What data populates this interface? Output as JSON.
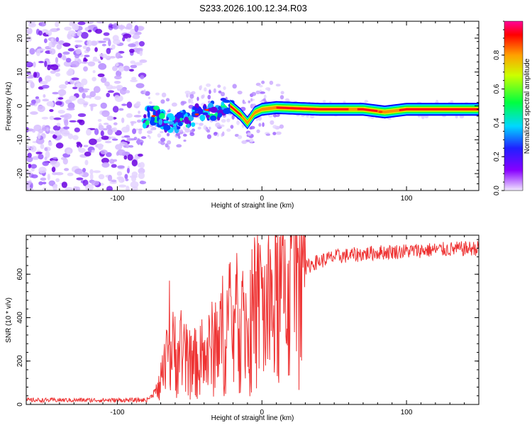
{
  "title": "S233.2026.100.12.34.R03",
  "chart_data": [
    {
      "type": "heatmap",
      "name": "spectrogram",
      "xlabel": "Height of straight line (km)",
      "ylabel": "Frequency (Hz)",
      "xlim": [
        -163,
        150
      ],
      "ylim": [
        -25,
        25
      ],
      "xticks": [
        -100,
        0,
        100
      ],
      "yticks": [
        -20,
        -10,
        0,
        10,
        20
      ],
      "colorbar": {
        "label": "Normalized spectral amplitude",
        "range": [
          0,
          1
        ],
        "ticks": [
          0.0,
          0.2,
          0.4,
          0.6,
          0.8
        ]
      },
      "features": {
        "noise_region_x": [
          -163,
          -82
        ],
        "tone_track": [
          {
            "x": -82,
            "f": -3.5
          },
          {
            "x": -75,
            "f": -2.5
          },
          {
            "x": -68,
            "f": -4.5
          },
          {
            "x": -60,
            "f": -5
          },
          {
            "x": -52,
            "f": -4
          },
          {
            "x": -45,
            "f": -2.5
          },
          {
            "x": -38,
            "f": -1.5
          },
          {
            "x": -30,
            "f": -1
          },
          {
            "x": -22,
            "f": 0
          },
          {
            "x": -15,
            "f": -2.5
          },
          {
            "x": -10,
            "f": -5
          },
          {
            "x": -5,
            "f": -2
          },
          {
            "x": 0,
            "f": -1
          },
          {
            "x": 10,
            "f": -0.5
          },
          {
            "x": 40,
            "f": -1
          },
          {
            "x": 70,
            "f": -1
          },
          {
            "x": 85,
            "f": -1.8
          },
          {
            "x": 100,
            "f": -1
          },
          {
            "x": 130,
            "f": -1
          },
          {
            "x": 150,
            "f": -1
          }
        ]
      }
    },
    {
      "type": "line",
      "name": "snr",
      "xlabel": "Height of straight line (km)",
      "ylabel": "SNR (10 * v/v)",
      "xlim": [
        -163,
        150
      ],
      "ylim": [
        0,
        780
      ],
      "xticks": [
        -100,
        0,
        100
      ],
      "yticks": [
        0,
        200,
        400,
        600
      ],
      "color": "#ee3333",
      "envelope": [
        {
          "x": -163,
          "y": 20
        },
        {
          "x": -80,
          "y": 20
        },
        {
          "x": -72,
          "y": 60
        },
        {
          "x": -65,
          "y": 200
        },
        {
          "x": -60,
          "y": 250
        },
        {
          "x": -50,
          "y": 180
        },
        {
          "x": -40,
          "y": 200
        },
        {
          "x": -30,
          "y": 300
        },
        {
          "x": -20,
          "y": 380
        },
        {
          "x": -10,
          "y": 360
        },
        {
          "x": 0,
          "y": 430
        },
        {
          "x": 5,
          "y": 420
        },
        {
          "x": 15,
          "y": 520
        },
        {
          "x": 25,
          "y": 600
        },
        {
          "x": 35,
          "y": 650
        },
        {
          "x": 50,
          "y": 680
        },
        {
          "x": 80,
          "y": 700
        },
        {
          "x": 110,
          "y": 710
        },
        {
          "x": 150,
          "y": 720
        }
      ],
      "spikes": [
        {
          "x": -64,
          "y": 570
        },
        {
          "x": -32,
          "y": 470
        },
        {
          "x": -18,
          "y": 600
        },
        {
          "x": -8,
          "y": 620
        },
        {
          "x": -1,
          "y": 680
        }
      ]
    }
  ]
}
